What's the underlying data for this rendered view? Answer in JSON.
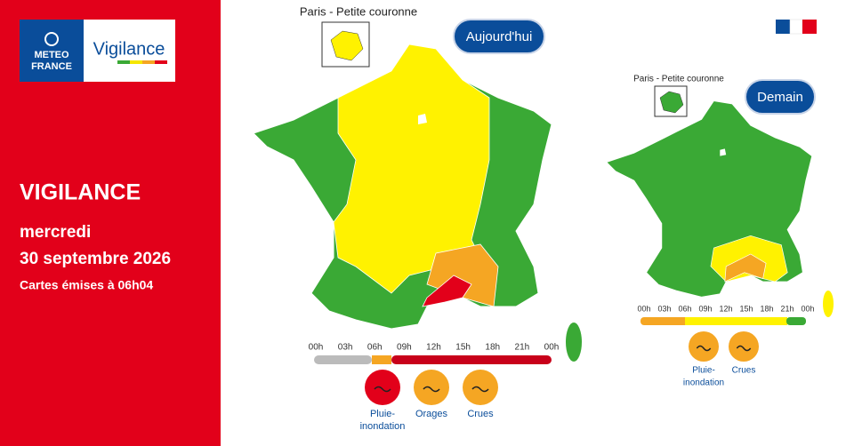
{
  "logo": {
    "brand": [
      "METEO",
      "FRANCE"
    ],
    "name": "Vigilance"
  },
  "panel": {
    "title": "VIGILANCE",
    "day": "mercredi",
    "date": "30 septembre 2026",
    "issued": "Cartes émises à 06h04"
  },
  "today": {
    "inset": "Paris - Petite couronne",
    "label": "Aujourd'hui",
    "hours": [
      "00h",
      "03h",
      "06h",
      "09h",
      "12h",
      "15h",
      "18h",
      "21h",
      "00h"
    ],
    "hazards": [
      {
        "lines": [
          "Pluie-",
          "inondation"
        ]
      },
      {
        "lines": [
          "Orages"
        ]
      },
      {
        "lines": [
          "Crues"
        ]
      }
    ]
  },
  "tomorrow": {
    "inset": "Paris - Petite couronne",
    "label": "Demain",
    "hours": [
      "00h",
      "03h",
      "06h",
      "09h",
      "12h",
      "15h",
      "18h",
      "21h",
      "00h"
    ],
    "hazards": [
      {
        "lines": [
          "Pluie-",
          "inondation"
        ]
      },
      {
        "lines": [
          "Crues"
        ]
      }
    ]
  }
}
